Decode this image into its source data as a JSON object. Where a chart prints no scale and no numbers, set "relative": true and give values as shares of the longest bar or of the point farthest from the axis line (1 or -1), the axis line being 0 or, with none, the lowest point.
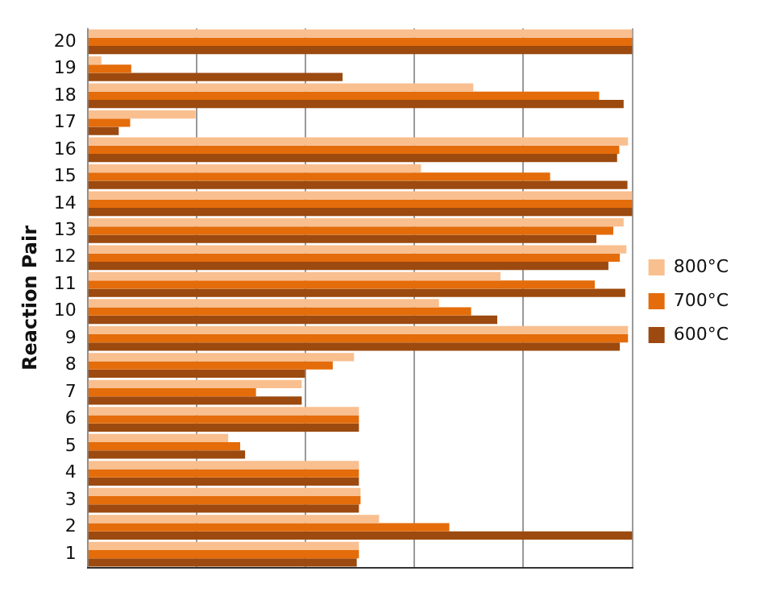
{
  "chart_data": {
    "type": "bar",
    "orientation": "horizontal",
    "relative": true,
    "ylabel": "Reaction Pair",
    "grid": "x",
    "legend": "right",
    "categories": [
      "20",
      "19",
      "18",
      "17",
      "16",
      "15",
      "14",
      "13",
      "12",
      "11",
      "10",
      "9",
      "8",
      "7",
      "6",
      "5",
      "4",
      "3",
      "2",
      "1"
    ],
    "series": [
      {
        "name": "800°C",
        "color": "#f9bf8f",
        "values": [
          1,
          0.025,
          0.708,
          0.198,
          0.992,
          0.612,
          1,
          0.984,
          0.989,
          0.758,
          0.645,
          0.992,
          0.489,
          0.393,
          0.498,
          0.258,
          0.498,
          0.501,
          0.535,
          0.498
        ]
      },
      {
        "name": "700°C",
        "color": "#e46c0a",
        "values": [
          1,
          0.08,
          0.939,
          0.078,
          0.976,
          0.849,
          1,
          0.965,
          0.977,
          0.931,
          0.704,
          0.992,
          0.45,
          0.309,
          0.498,
          0.28,
          0.498,
          0.501,
          0.664,
          0.498
        ]
      },
      {
        "name": "600°C",
        "color": "#9c4a0f",
        "values": [
          1,
          0.468,
          0.984,
          0.057,
          0.972,
          0.991,
          1,
          0.934,
          0.956,
          0.987,
          0.752,
          0.977,
          0.399,
          0.393,
          0.498,
          0.289,
          0.498,
          0.498,
          1,
          0.494
        ]
      }
    ]
  }
}
